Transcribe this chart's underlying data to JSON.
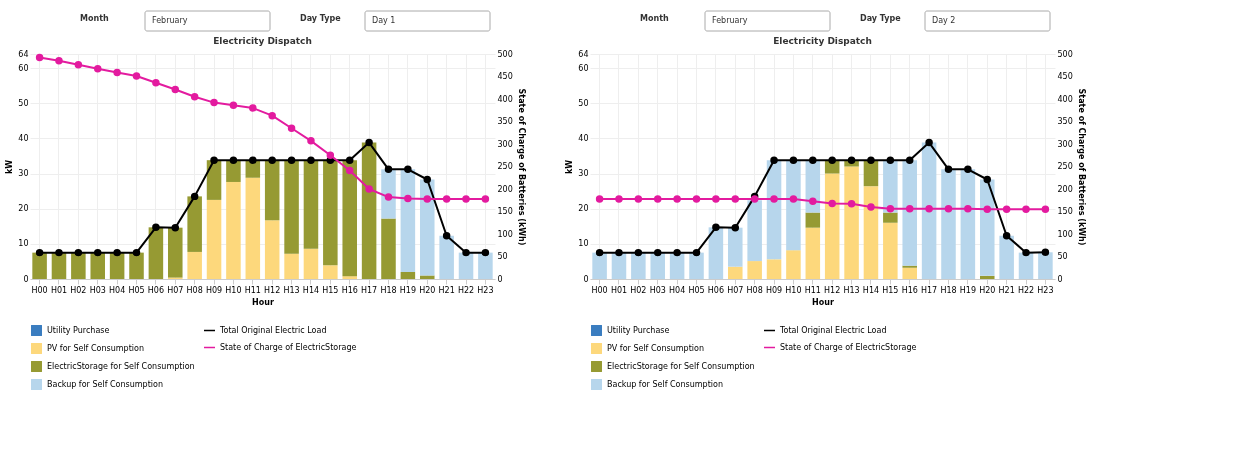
{
  "chart_data": [
    {
      "type": "bar",
      "title": "Electricity Dispatch",
      "xlabel": "Hour",
      "ylabel": "kW",
      "y2label": "State of Charge of Batteries (kWh)",
      "annotations": [
        "Month",
        "February",
        "Day Type",
        "Day 1"
      ],
      "categories": [
        "H00",
        "H01",
        "H02",
        "H03",
        "H04",
        "H05",
        "H06",
        "H07",
        "H08",
        "H09",
        "H10",
        "H11",
        "H12",
        "H13",
        "H14",
        "H15",
        "H16",
        "H17",
        "H18",
        "H19",
        "H20",
        "H21",
        "H22",
        "H23"
      ],
      "stacked": true,
      "grid": true,
      "legend": "bottom",
      "marker": "circle",
      "line_style": "solid",
      "ylim": [
        0,
        64
      ],
      "yticks": [
        0,
        10,
        20,
        30,
        40,
        50,
        60,
        64
      ],
      "y2lim": [
        0,
        500
      ],
      "y2ticks": [
        0,
        50,
        100,
        150,
        200,
        250,
        300,
        350,
        400,
        450,
        500
      ],
      "series": [
        {
          "name": "Total Original Electric Load",
          "type": "line",
          "color": "#000000",
          "values": [
            7.5,
            7.5,
            7.5,
            7.5,
            7.5,
            7.5,
            14.7,
            14.6,
            23.5,
            33.8,
            33.8,
            33.8,
            33.8,
            33.8,
            33.8,
            33.8,
            33.8,
            38.8,
            31.2,
            31.2,
            28.3,
            12.3,
            7.5,
            7.5
          ]
        },
        {
          "name": "Utility Purchase",
          "color": "#3a7dc0",
          "values": [
            0,
            0,
            0,
            0,
            0,
            0,
            0,
            0,
            0,
            0,
            0,
            0,
            0,
            0,
            0,
            0,
            0,
            0,
            0,
            0,
            0,
            0,
            0,
            0
          ]
        },
        {
          "name": "PV for Self Consumption",
          "color": "#fdd87c",
          "values": [
            0,
            0,
            0,
            0,
            0,
            0,
            0,
            0.4,
            7.7,
            22.5,
            27.6,
            28.8,
            16.7,
            7.2,
            8.6,
            3.9,
            0.8,
            0,
            0,
            0,
            0,
            0,
            0,
            0
          ]
        },
        {
          "name": "ElectricStorage for Self Consumption",
          "color": "#969a33",
          "values": [
            7.5,
            7.5,
            7.5,
            7.5,
            7.5,
            7.5,
            14.7,
            14.2,
            15.8,
            11.3,
            6.2,
            5.0,
            17.1,
            26.6,
            25.2,
            29.9,
            33.0,
            38.8,
            17.2,
            2.0,
            1.0,
            0,
            0,
            0
          ]
        },
        {
          "name": "Backup for Self Consumption",
          "color": "#b7d6ec",
          "values": [
            0,
            0,
            0,
            0,
            0,
            0,
            0,
            0,
            0,
            0,
            0,
            0,
            0,
            0,
            0,
            0,
            0,
            0,
            14.0,
            29.2,
            27.3,
            12.3,
            7.5,
            7.5
          ]
        },
        {
          "name": "State of Charge of ElectricStorage",
          "type": "line",
          "axis": "y2",
          "color": "#e31b9f",
          "values": [
            492,
            485,
            476,
            467,
            459,
            451,
            436,
            421,
            405,
            392,
            386,
            380,
            363,
            335,
            307,
            275,
            241,
            200,
            182,
            179,
            178,
            178,
            178,
            178
          ]
        }
      ]
    },
    {
      "type": "bar",
      "title": "Electricity Dispatch",
      "xlabel": "Hour",
      "ylabel": "kW",
      "y2label": "State of Charge of Batteries (kWh)",
      "annotations": [
        "Month",
        "February",
        "Day Type",
        "Day 2"
      ],
      "categories": [
        "H00",
        "H01",
        "H02",
        "H03",
        "H04",
        "H05",
        "H06",
        "H07",
        "H08",
        "H09",
        "H10",
        "H11",
        "H12",
        "H13",
        "H14",
        "H15",
        "H16",
        "H17",
        "H18",
        "H19",
        "H20",
        "H21",
        "H22",
        "H23"
      ],
      "stacked": true,
      "grid": true,
      "legend": "bottom",
      "marker": "circle",
      "line_style": "solid",
      "ylim": [
        0,
        64
      ],
      "yticks": [
        0,
        10,
        20,
        30,
        40,
        50,
        60,
        64
      ],
      "y2lim": [
        0,
        500
      ],
      "y2ticks": [
        0,
        50,
        100,
        150,
        200,
        250,
        300,
        350,
        400,
        450,
        500
      ],
      "series": [
        {
          "name": "Total Original Electric Load",
          "type": "line",
          "color": "#000000",
          "values": [
            7.5,
            7.5,
            7.5,
            7.5,
            7.5,
            7.5,
            14.7,
            14.6,
            23.5,
            33.8,
            33.8,
            33.8,
            33.8,
            33.8,
            33.8,
            33.8,
            33.8,
            38.8,
            31.2,
            31.2,
            28.3,
            12.3,
            7.5,
            7.6
          ]
        },
        {
          "name": "Utility Purchase",
          "color": "#3a7dc0",
          "values": [
            0,
            0,
            0,
            0,
            0,
            0,
            0,
            0,
            0,
            0,
            0,
            0,
            0,
            0,
            0,
            0,
            0,
            0,
            0,
            0,
            0,
            0,
            0,
            0
          ]
        },
        {
          "name": "PV for Self Consumption",
          "color": "#fdd87c",
          "values": [
            0,
            0,
            0,
            0,
            0,
            0,
            0,
            3.5,
            5.1,
            5.6,
            8.2,
            14.6,
            30.0,
            32.0,
            26.4,
            16.0,
            3.2,
            0,
            0,
            0,
            0,
            0,
            0,
            0
          ]
        },
        {
          "name": "ElectricStorage for Self Consumption",
          "color": "#969a33",
          "values": [
            0,
            0,
            0,
            0,
            0,
            0,
            0,
            0,
            0,
            0,
            0,
            4.3,
            3.8,
            1.8,
            7.4,
            2.9,
            0.6,
            0,
            0,
            0,
            0.9,
            0,
            0,
            0
          ]
        },
        {
          "name": "Backup for Self Consumption",
          "color": "#b7d6ec",
          "values": [
            7.5,
            7.5,
            7.5,
            7.5,
            7.5,
            7.5,
            14.7,
            11.1,
            17.3,
            28.2,
            25.6,
            14.9,
            0,
            0,
            0,
            14.9,
            30.0,
            38.8,
            31.2,
            31.2,
            27.4,
            12.3,
            7.5,
            7.6
          ]
        },
        {
          "name": "State of Charge of ElectricStorage",
          "type": "line",
          "axis": "y2",
          "color": "#e31b9f",
          "values": [
            178,
            178,
            178,
            178,
            178,
            178,
            178,
            178,
            178,
            178,
            178,
            173,
            168,
            167,
            160,
            156,
            156,
            156,
            156,
            156,
            155,
            155,
            155,
            155
          ]
        }
      ]
    }
  ]
}
